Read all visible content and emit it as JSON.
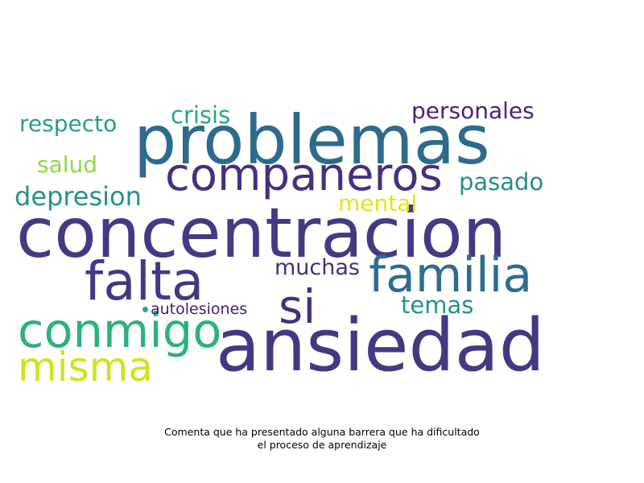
{
  "caption": {
    "line1": "Comenta que ha presentado alguna barrera que ha dificultado",
    "line2": "el proceso de aprendizaje"
  },
  "colors": {
    "background": "#ffffff",
    "caption_text": "#000000"
  },
  "word_cloud": {
    "words": [
      {
        "text": "concentracion",
        "color": "#443a83"
      },
      {
        "text": "ansiedad",
        "color": "#453781"
      },
      {
        "text": "problemas",
        "color": "#2e6a8e"
      },
      {
        "text": "falta",
        "color": "#453882"
      },
      {
        "text": "familia",
        "color": "#2f6c8e"
      },
      {
        "text": "companeros",
        "color": "#46307e"
      },
      {
        "text": "conmigo",
        "color": "#2cb27a"
      },
      {
        "text": "misma",
        "color": "#d2e21b"
      },
      {
        "text": "si",
        "color": "#472f7d"
      },
      {
        "text": "depresion",
        "color": "#25918c"
      },
      {
        "text": "respecto",
        "color": "#2c9c86"
      },
      {
        "text": "crisis",
        "color": "#26a686"
      },
      {
        "text": "personales",
        "color": "#482476"
      },
      {
        "text": "salud",
        "color": "#8fd744"
      },
      {
        "text": "pasado",
        "color": "#2a8d8c"
      },
      {
        "text": "mental",
        "color": "#e3e419"
      },
      {
        "text": "muchas",
        "color": "#472e7c"
      },
      {
        "text": "temas",
        "color": "#20958b"
      },
      {
        "text": "autolesiones",
        "color": "#471d6f"
      }
    ],
    "dot_color": "#2ea584"
  }
}
